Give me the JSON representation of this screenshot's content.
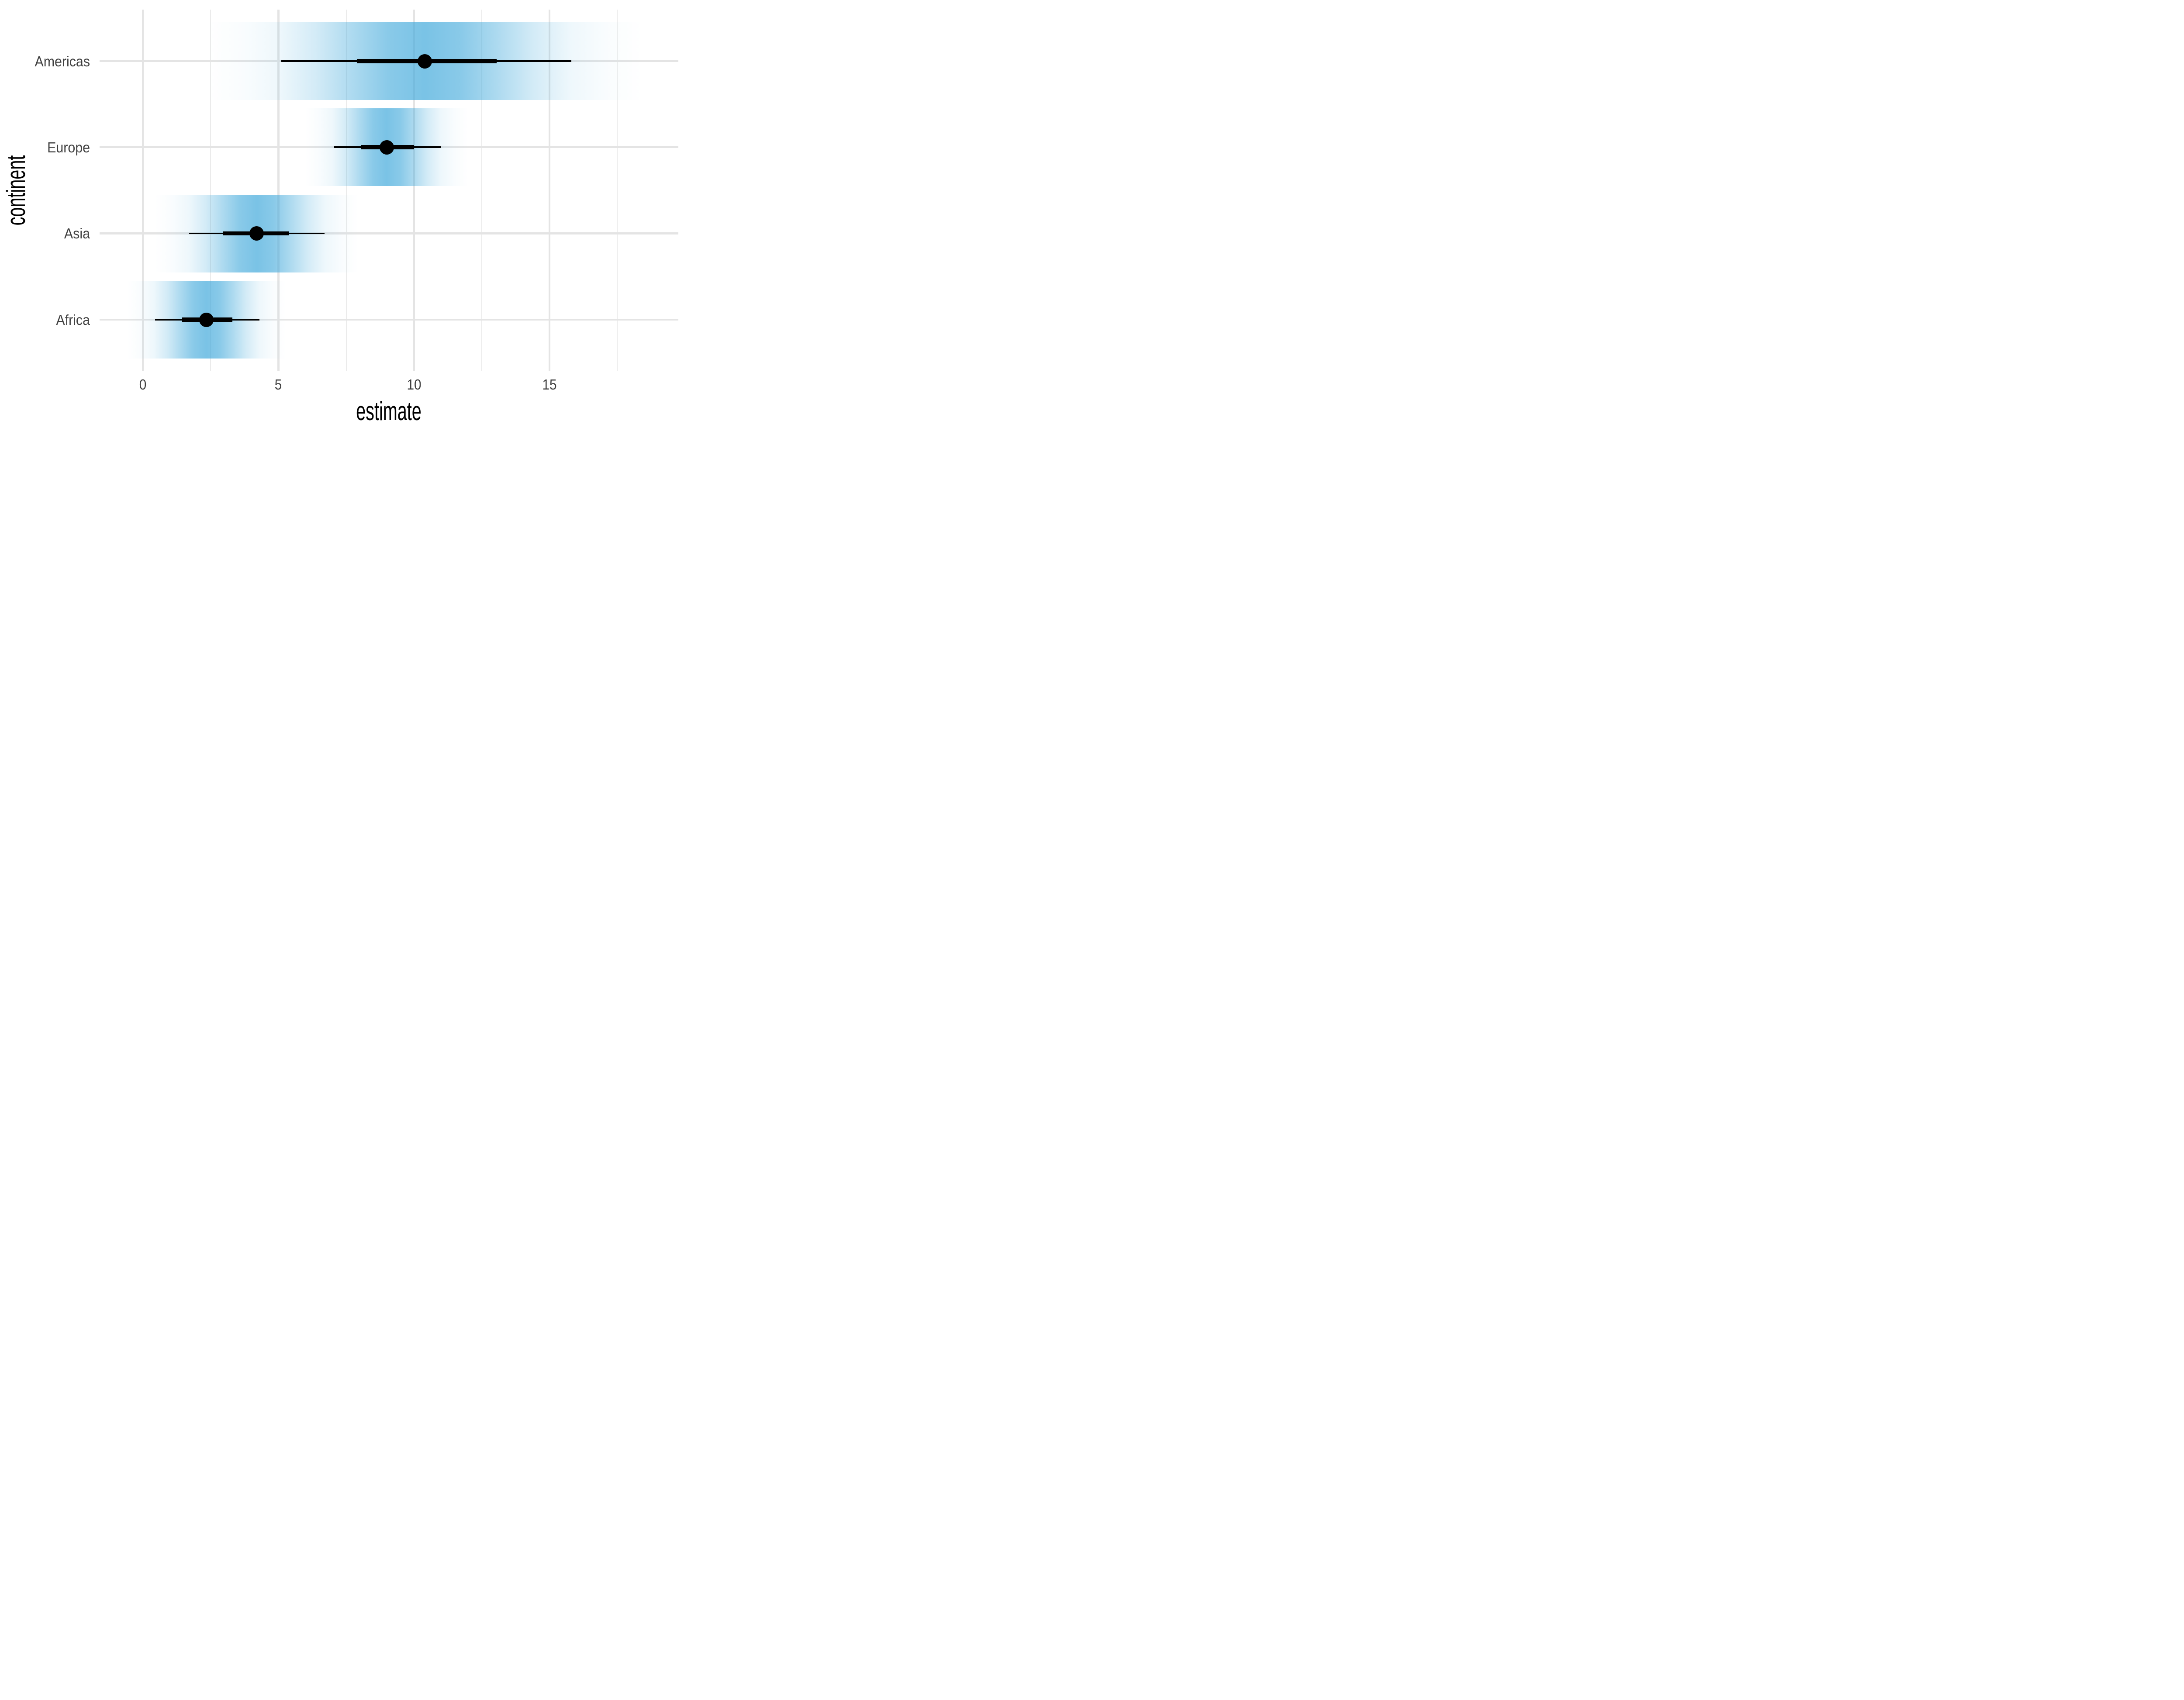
{
  "chart_data": {
    "type": "pointinterval-gradient",
    "title": "",
    "xlabel": "estimate",
    "ylabel": "continent",
    "categories": [
      "Americas",
      "Europe",
      "Asia",
      "Africa"
    ],
    "x_ticks": [
      0,
      5,
      10,
      15
    ],
    "x_tick_labels": [
      "0",
      "5",
      "10",
      "15"
    ],
    "x_minor_ticks": [
      2.5,
      7.5,
      12.5,
      17.5
    ],
    "xlim": [
      -1.6,
      19.75
    ],
    "grid": "on",
    "legend": "none",
    "series": [
      {
        "continent": "Americas",
        "point": 10.4,
        "thick": [
          7.9,
          13.05
        ],
        "thin": [
          5.1,
          15.8
        ],
        "sd": 2.67
      },
      {
        "continent": "Europe",
        "point": 9.0,
        "thick": [
          8.05,
          10.0
        ],
        "thin": [
          7.05,
          11.0
        ],
        "sd": 1.0
      },
      {
        "continent": "Asia",
        "point": 4.2,
        "thick": [
          2.95,
          5.4
        ],
        "thin": [
          1.7,
          6.7
        ],
        "sd": 1.25
      },
      {
        "continent": "Africa",
        "point": 2.35,
        "thick": [
          1.45,
          3.3
        ],
        "thin": [
          0.45,
          4.3
        ],
        "sd": 0.97
      }
    ],
    "band_sd_extent": 3,
    "gradient_alphas": [
      0,
      0.03,
      0.09,
      0.23,
      0.43,
      0.62,
      0.7,
      0.62,
      0.43,
      0.23,
      0.09,
      0.03,
      0
    ]
  },
  "colors": {
    "band_base_rgb": "65,169,219",
    "grid_major": "#e4e4e4",
    "grid_minor": "#ebebeb",
    "interval": "#000000",
    "axis_text": "#404040",
    "title_text": "#000000",
    "background": "#ffffff"
  }
}
